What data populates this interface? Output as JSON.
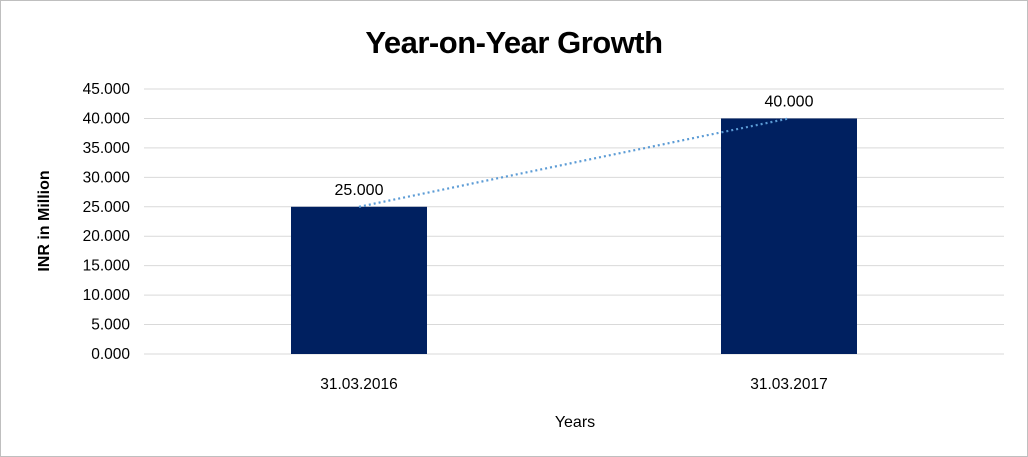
{
  "chart_data": {
    "type": "bar",
    "title": "Year-on-Year Growth",
    "xlabel": "Years",
    "ylabel": "INR in Million",
    "categories": [
      "31.03.2016",
      "31.03.2017"
    ],
    "values": [
      25,
      40
    ],
    "data_labels": [
      "25.000",
      "40.000"
    ],
    "ylim": [
      0,
      45
    ],
    "yticks": [
      0,
      5,
      10,
      15,
      20,
      25,
      30,
      35,
      40,
      45
    ],
    "ytick_labels": [
      "0.000",
      "5.000",
      "10.000",
      "15.000",
      "20.000",
      "25.000",
      "30.000",
      "35.000",
      "40.000",
      "45.000"
    ],
    "trendline": "linear, dotted",
    "grid": true,
    "legend": "none",
    "colors": {
      "bar": "#002060",
      "trendline": "#5b9bd5",
      "grid": "#d9d9d9"
    }
  }
}
